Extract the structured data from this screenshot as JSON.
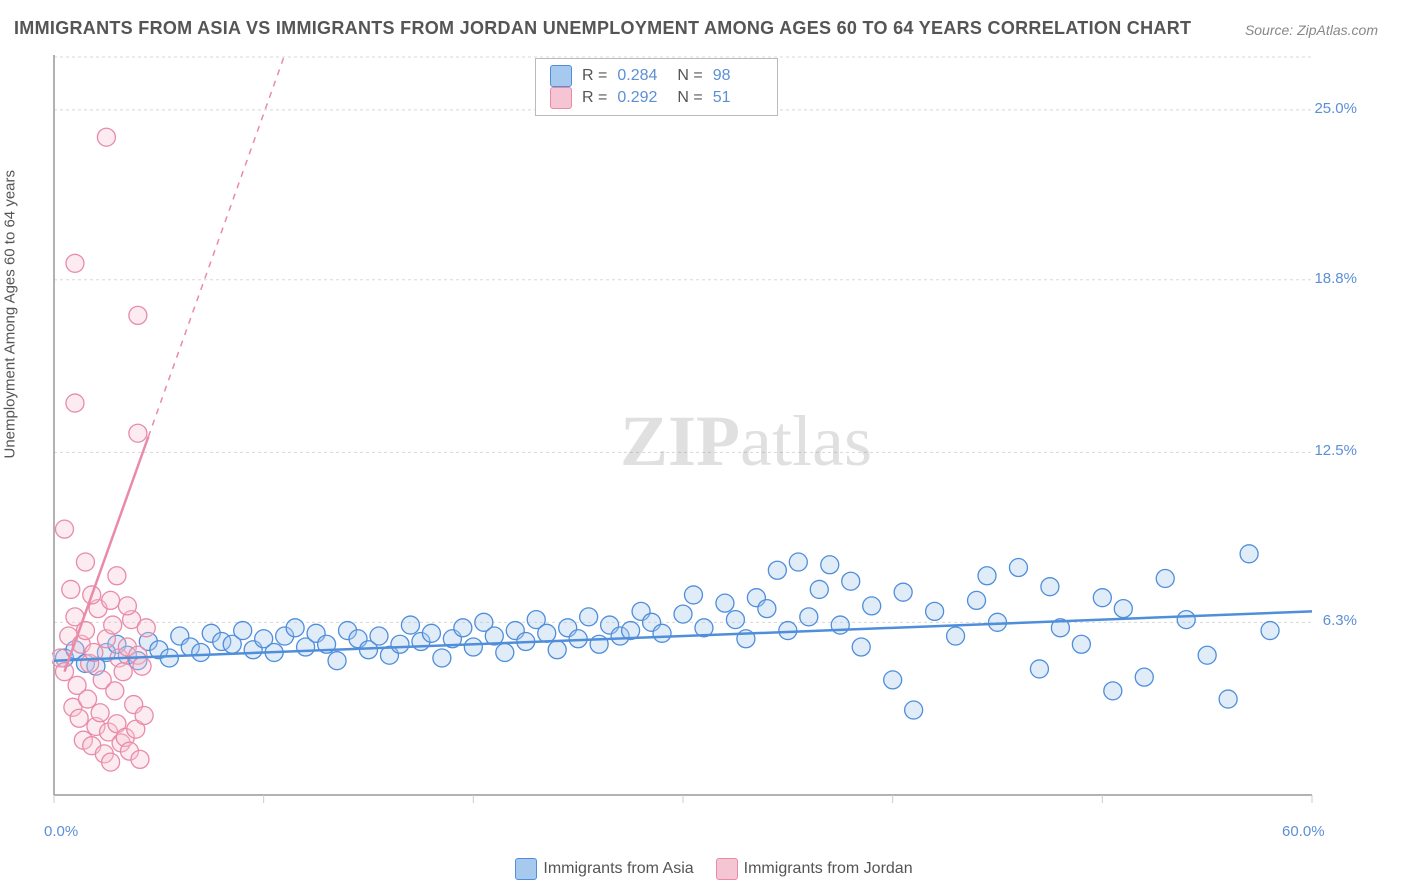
{
  "title": "IMMIGRANTS FROM ASIA VS IMMIGRANTS FROM JORDAN UNEMPLOYMENT AMONG AGES 60 TO 64 YEARS CORRELATION CHART",
  "source": "Source: ZipAtlas.com",
  "y_axis_label": "Unemployment Among Ages 60 to 64 years",
  "watermark": {
    "bold": "ZIP",
    "rest": "atlas"
  },
  "chart": {
    "type": "scatter",
    "background_color": "#ffffff",
    "grid_color": "#d8d8d8",
    "axis_color": "#999999",
    "x_range": [
      0,
      60
    ],
    "y_range": [
      0,
      27
    ],
    "x_ticks": [
      {
        "val": 0,
        "label": "0.0%"
      },
      {
        "val": 10
      },
      {
        "val": 20
      },
      {
        "val": 30
      },
      {
        "val": 40
      },
      {
        "val": 50
      },
      {
        "val": 60,
        "label": "60.0%"
      }
    ],
    "y_ticks": [
      {
        "val": 6.3,
        "label": "6.3%"
      },
      {
        "val": 12.5,
        "label": "12.5%"
      },
      {
        "val": 18.8,
        "label": "18.8%"
      },
      {
        "val": 25.0,
        "label": "25.0%"
      }
    ],
    "marker_radius": 9,
    "marker_stroke_width": 1.3,
    "marker_fill_opacity": 0.35,
    "trend_line_width": 2.5,
    "series": [
      {
        "name": "Immigrants from Asia",
        "color": "#4f8edb",
        "fill": "#a8c9ee",
        "r": 0.284,
        "n": 98,
        "trend": {
          "x1": 0,
          "y1": 4.9,
          "x2": 60,
          "y2": 6.7,
          "solid_until_x": 60
        },
        "points": [
          [
            0.5,
            5.0
          ],
          [
            1,
            5.3
          ],
          [
            1.5,
            4.8
          ],
          [
            2,
            4.7
          ],
          [
            2.5,
            5.2
          ],
          [
            3,
            5.5
          ],
          [
            3.5,
            5.1
          ],
          [
            4,
            4.9
          ],
          [
            4.5,
            5.6
          ],
          [
            5,
            5.3
          ],
          [
            5.5,
            5.0
          ],
          [
            6,
            5.8
          ],
          [
            6.5,
            5.4
          ],
          [
            7,
            5.2
          ],
          [
            7.5,
            5.9
          ],
          [
            8,
            5.6
          ],
          [
            8.5,
            5.5
          ],
          [
            9,
            6.0
          ],
          [
            9.5,
            5.3
          ],
          [
            10,
            5.7
          ],
          [
            10.5,
            5.2
          ],
          [
            11,
            5.8
          ],
          [
            11.5,
            6.1
          ],
          [
            12,
            5.4
          ],
          [
            12.5,
            5.9
          ],
          [
            13,
            5.5
          ],
          [
            13.5,
            4.9
          ],
          [
            14,
            6.0
          ],
          [
            14.5,
            5.7
          ],
          [
            15,
            5.3
          ],
          [
            15.5,
            5.8
          ],
          [
            16,
            5.1
          ],
          [
            16.5,
            5.5
          ],
          [
            17,
            6.2
          ],
          [
            17.5,
            5.6
          ],
          [
            18,
            5.9
          ],
          [
            18.5,
            5.0
          ],
          [
            19,
            5.7
          ],
          [
            19.5,
            6.1
          ],
          [
            20,
            5.4
          ],
          [
            20.5,
            6.3
          ],
          [
            21,
            5.8
          ],
          [
            21.5,
            5.2
          ],
          [
            22,
            6.0
          ],
          [
            22.5,
            5.6
          ],
          [
            23,
            6.4
          ],
          [
            23.5,
            5.9
          ],
          [
            24,
            5.3
          ],
          [
            24.5,
            6.1
          ],
          [
            25,
            5.7
          ],
          [
            25.5,
            6.5
          ],
          [
            26,
            5.5
          ],
          [
            26.5,
            6.2
          ],
          [
            27,
            5.8
          ],
          [
            27.5,
            6.0
          ],
          [
            28,
            6.7
          ],
          [
            28.5,
            6.3
          ],
          [
            29,
            5.9
          ],
          [
            30,
            6.6
          ],
          [
            30.5,
            7.3
          ],
          [
            31,
            6.1
          ],
          [
            32,
            7.0
          ],
          [
            32.5,
            6.4
          ],
          [
            33,
            5.7
          ],
          [
            33.5,
            7.2
          ],
          [
            34,
            6.8
          ],
          [
            34.5,
            8.2
          ],
          [
            35,
            6.0
          ],
          [
            35.5,
            8.5
          ],
          [
            36,
            6.5
          ],
          [
            36.5,
            7.5
          ],
          [
            37,
            8.4
          ],
          [
            37.5,
            6.2
          ],
          [
            38,
            7.8
          ],
          [
            38.5,
            5.4
          ],
          [
            39,
            6.9
          ],
          [
            40,
            4.2
          ],
          [
            40.5,
            7.4
          ],
          [
            41,
            3.1
          ],
          [
            42,
            6.7
          ],
          [
            43,
            5.8
          ],
          [
            44,
            7.1
          ],
          [
            44.5,
            8.0
          ],
          [
            45,
            6.3
          ],
          [
            46,
            8.3
          ],
          [
            47,
            4.6
          ],
          [
            47.5,
            7.6
          ],
          [
            48,
            6.1
          ],
          [
            49,
            5.5
          ],
          [
            50,
            7.2
          ],
          [
            50.5,
            3.8
          ],
          [
            51,
            6.8
          ],
          [
            52,
            4.3
          ],
          [
            53,
            7.9
          ],
          [
            54,
            6.4
          ],
          [
            55,
            5.1
          ],
          [
            56,
            3.5
          ],
          [
            57,
            8.8
          ],
          [
            58,
            6.0
          ]
        ]
      },
      {
        "name": "Immigrants from Jordan",
        "color": "#e98ba8",
        "fill": "#f5c5d4",
        "r": 0.292,
        "n": 51,
        "trend": {
          "x1": 0.5,
          "y1": 4.5,
          "x2": 18,
          "y2": 42,
          "solid_until_x": 4.5
        },
        "points": [
          [
            0.3,
            5.0
          ],
          [
            0.5,
            4.5
          ],
          [
            0.7,
            5.8
          ],
          [
            0.9,
            3.2
          ],
          [
            1.0,
            6.5
          ],
          [
            1.1,
            4.0
          ],
          [
            1.2,
            2.8
          ],
          [
            1.3,
            5.5
          ],
          [
            1.4,
            2.0
          ],
          [
            1.5,
            6.0
          ],
          [
            1.6,
            3.5
          ],
          [
            1.7,
            4.8
          ],
          [
            1.8,
            1.8
          ],
          [
            1.9,
            5.2
          ],
          [
            2.0,
            2.5
          ],
          [
            2.1,
            6.8
          ],
          [
            2.2,
            3.0
          ],
          [
            2.3,
            4.2
          ],
          [
            2.4,
            1.5
          ],
          [
            2.5,
            5.7
          ],
          [
            2.6,
            2.3
          ],
          [
            2.7,
            1.2
          ],
          [
            2.8,
            6.2
          ],
          [
            2.9,
            3.8
          ],
          [
            3.0,
            2.6
          ],
          [
            3.1,
            5.0
          ],
          [
            3.2,
            1.9
          ],
          [
            3.3,
            4.5
          ],
          [
            3.4,
            2.1
          ],
          [
            3.5,
            5.4
          ],
          [
            3.6,
            1.6
          ],
          [
            3.7,
            6.4
          ],
          [
            3.8,
            3.3
          ],
          [
            3.9,
            2.4
          ],
          [
            4.0,
            5.1
          ],
          [
            4.1,
            1.3
          ],
          [
            4.2,
            4.7
          ],
          [
            4.3,
            2.9
          ],
          [
            4.4,
            6.1
          ],
          [
            0.5,
            9.7
          ],
          [
            3.0,
            8.0
          ],
          [
            1.0,
            14.3
          ],
          [
            4.0,
            13.2
          ],
          [
            1.0,
            19.4
          ],
          [
            4.0,
            17.5
          ],
          [
            2.5,
            24.0
          ],
          [
            3.5,
            6.9
          ],
          [
            1.8,
            7.3
          ],
          [
            2.7,
            7.1
          ],
          [
            0.8,
            7.5
          ],
          [
            1.5,
            8.5
          ]
        ]
      }
    ]
  },
  "footer_legend": [
    {
      "label": "Immigrants from Asia",
      "color": "#4f8edb",
      "fill": "#a8c9ee"
    },
    {
      "label": "Immigrants from Jordan",
      "color": "#e98ba8",
      "fill": "#f5c5d4"
    }
  ]
}
